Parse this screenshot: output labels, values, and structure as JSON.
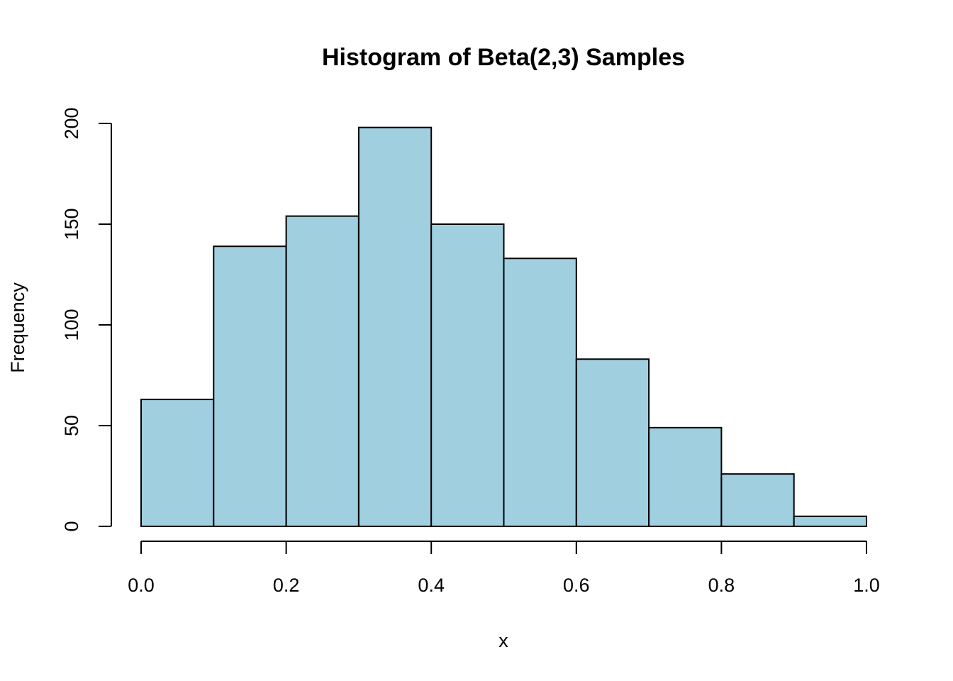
{
  "chart_data": {
    "type": "bar",
    "title": "Histogram of Beta(2,3) Samples",
    "xlabel": "x",
    "ylabel": "Frequency",
    "bin_edges": [
      0.0,
      0.1,
      0.2,
      0.3,
      0.4,
      0.5,
      0.6,
      0.7,
      0.8,
      0.9,
      1.0
    ],
    "values": [
      63,
      139,
      154,
      198,
      150,
      133,
      83,
      49,
      26,
      5
    ],
    "xlim": [
      0.0,
      1.0
    ],
    "ylim": [
      0,
      200
    ],
    "x_ticks": [
      "0.0",
      "0.2",
      "0.4",
      "0.6",
      "0.8",
      "1.0"
    ],
    "y_ticks": [
      "0",
      "50",
      "100",
      "150",
      "200"
    ],
    "bar_color": "#a0cfe0",
    "grid": false,
    "legend": false
  }
}
